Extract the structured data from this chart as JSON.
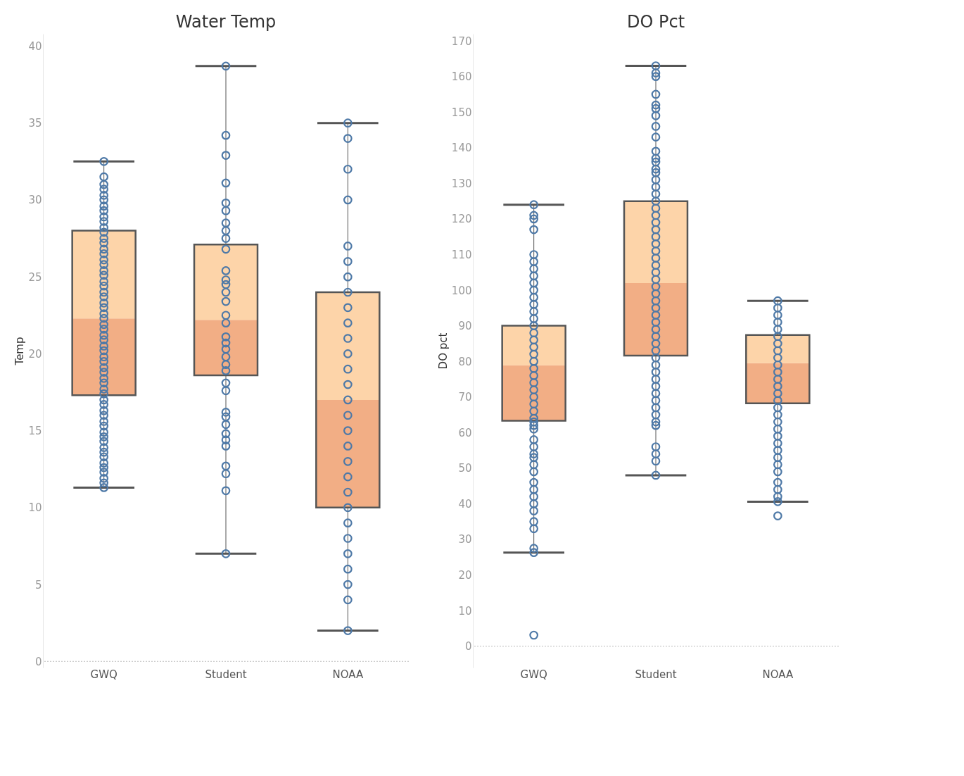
{
  "chart_data": [
    {
      "type": "box",
      "title": "Water Temp",
      "ylabel": "Temp",
      "categories": [
        "GWQ",
        "Student",
        "NOAA"
      ],
      "ylim": [
        -0.4,
        40.8
      ],
      "yticks": [
        0,
        5,
        10,
        15,
        20,
        25,
        30,
        35,
        40
      ],
      "grid": false,
      "ref_lines": [
        {
          "axis": "y",
          "value": 0,
          "color": "#bbbbbb",
          "line_style": "dotted"
        }
      ],
      "series": [
        {
          "type": "scatter",
          "color": "#4e79a7",
          "marker": "circle",
          "x": [
            "GWQ",
            "GWQ",
            "GWQ",
            "GWQ",
            "GWQ",
            "GWQ",
            "GWQ",
            "GWQ",
            "GWQ",
            "GWQ",
            "GWQ",
            "GWQ",
            "GWQ",
            "GWQ",
            "GWQ",
            "GWQ",
            "GWQ",
            "GWQ",
            "GWQ",
            "GWQ",
            "GWQ",
            "GWQ",
            "GWQ",
            "GWQ",
            "GWQ",
            "GWQ",
            "GWQ",
            "GWQ",
            "GWQ",
            "GWQ",
            "GWQ",
            "GWQ",
            "GWQ",
            "GWQ",
            "GWQ",
            "GWQ",
            "GWQ",
            "GWQ",
            "GWQ",
            "GWQ",
            "GWQ",
            "GWQ",
            "GWQ",
            "GWQ",
            "GWQ",
            "GWQ",
            "GWQ",
            "GWQ",
            "GWQ",
            "GWQ",
            "GWQ",
            "GWQ",
            "GWQ",
            "GWQ",
            "GWQ",
            "GWQ",
            "GWQ",
            "GWQ",
            "GWQ",
            "GWQ",
            "Student",
            "Student",
            "Student",
            "Student",
            "Student",
            "Student",
            "Student",
            "Student",
            "Student",
            "Student",
            "Student",
            "Student",
            "Student",
            "Student",
            "Student",
            "Student",
            "Student",
            "Student",
            "Student",
            "Student",
            "Student",
            "Student",
            "Student",
            "Student",
            "Student",
            "Student",
            "Student",
            "Student",
            "Student",
            "Student",
            "Student",
            "Student",
            "Student",
            "Student",
            "Student",
            "NOAA",
            "NOAA",
            "NOAA",
            "NOAA",
            "NOAA",
            "NOAA",
            "NOAA",
            "NOAA",
            "NOAA",
            "NOAA",
            "NOAA",
            "NOAA",
            "NOAA",
            "NOAA",
            "NOAA",
            "NOAA",
            "NOAA",
            "NOAA",
            "NOAA",
            "NOAA",
            "NOAA",
            "NOAA",
            "NOAA",
            "NOAA",
            "NOAA",
            "NOAA",
            "NOAA",
            "NOAA",
            "NOAA"
          ],
          "values": [
            11.3,
            11.6,
            11.9,
            12.3,
            12.6,
            12.9,
            13.3,
            13.6,
            13.9,
            14.3,
            14.6,
            14.9,
            15.3,
            15.6,
            16.0,
            16.3,
            16.7,
            17.0,
            17.4,
            17.7,
            18.1,
            18.4,
            18.8,
            19.1,
            19.5,
            19.8,
            20.2,
            20.5,
            20.9,
            21.2,
            21.6,
            21.9,
            22.3,
            22.6,
            23.0,
            23.3,
            23.7,
            24.0,
            24.4,
            24.7,
            25.1,
            25.4,
            25.8,
            26.1,
            26.5,
            26.8,
            27.2,
            27.5,
            27.9,
            28.2,
            28.6,
            28.9,
            29.3,
            29.6,
            30.0,
            30.3,
            30.7,
            31.0,
            31.5,
            32.5,
            38.7,
            34.2,
            32.9,
            31.1,
            29.8,
            29.3,
            28.5,
            28.0,
            27.5,
            26.8,
            25.4,
            24.8,
            24.5,
            24.0,
            23.4,
            22.5,
            22.0,
            21.1,
            20.7,
            20.3,
            19.8,
            19.3,
            18.9,
            18.1,
            17.6,
            16.2,
            15.9,
            15.4,
            14.8,
            14.4,
            14.0,
            12.7,
            12.2,
            11.1,
            7.0,
            35,
            34,
            32,
            30,
            27,
            26,
            25,
            24,
            23,
            22,
            21,
            20,
            19,
            18,
            17,
            16,
            15,
            14,
            13,
            12,
            11,
            10,
            9,
            8,
            7,
            6,
            5,
            4,
            2
          ]
        },
        {
          "type": "box",
          "colors": [
            [
              "#f0a070",
              "#fdcc9a"
            ],
            [
              "#f0a070",
              "#fdcc9a"
            ],
            [
              "#f0a070",
              "#fdcc9a"
            ]
          ],
          "boxes": [
            {
              "low": 11.3,
              "q1": 17.3,
              "median": 22.3,
              "q3": 28.0,
              "high": 32.5
            },
            {
              "low": 7.0,
              "q1": 18.6,
              "median": 22.2,
              "q3": 27.1,
              "high": 38.7
            },
            {
              "low": 2,
              "q1": 10,
              "median": 17,
              "q3": 24,
              "high": 35
            }
          ]
        }
      ]
    },
    {
      "type": "box",
      "title": "DO Pct",
      "ylabel": "DO pct",
      "categories": [
        "GWQ",
        "Student",
        "NOAA"
      ],
      "ylim": [
        -6,
        172
      ],
      "yticks": [
        0,
        10,
        20,
        30,
        40,
        50,
        60,
        70,
        80,
        90,
        100,
        110,
        120,
        130,
        140,
        150,
        160,
        170
      ],
      "grid": false,
      "ref_lines": [
        {
          "axis": "y",
          "value": 0,
          "color": "#bbbbbb",
          "line_style": "dotted"
        }
      ],
      "series": [
        {
          "type": "scatter",
          "color": "#4e79a7",
          "marker": "circle",
          "x": [
            "GWQ",
            "GWQ",
            "GWQ",
            "GWQ",
            "GWQ",
            "GWQ",
            "GWQ",
            "GWQ",
            "GWQ",
            "GWQ",
            "GWQ",
            "GWQ",
            "GWQ",
            "GWQ",
            "GWQ",
            "GWQ",
            "GWQ",
            "GWQ",
            "GWQ",
            "GWQ",
            "GWQ",
            "GWQ",
            "GWQ",
            "GWQ",
            "GWQ",
            "GWQ",
            "GWQ",
            "GWQ",
            "GWQ",
            "GWQ",
            "GWQ",
            "GWQ",
            "GWQ",
            "GWQ",
            "GWQ",
            "GWQ",
            "GWQ",
            "GWQ",
            "GWQ",
            "GWQ",
            "GWQ",
            "GWQ",
            "GWQ",
            "GWQ",
            "GWQ",
            "GWQ",
            "GWQ",
            "Student",
            "Student",
            "Student",
            "Student",
            "Student",
            "Student",
            "Student",
            "Student",
            "Student",
            "Student",
            "Student",
            "Student",
            "Student",
            "Student",
            "Student",
            "Student",
            "Student",
            "Student",
            "Student",
            "Student",
            "Student",
            "Student",
            "Student",
            "Student",
            "Student",
            "Student",
            "Student",
            "Student",
            "Student",
            "Student",
            "Student",
            "Student",
            "Student",
            "Student",
            "Student",
            "Student",
            "Student",
            "Student",
            "Student",
            "Student",
            "Student",
            "Student",
            "Student",
            "Student",
            "Student",
            "Student",
            "Student",
            "Student",
            "Student",
            "Student",
            "Student",
            "Student",
            "Student",
            "Student",
            "NOAA",
            "NOAA",
            "NOAA",
            "NOAA",
            "NOAA",
            "NOAA",
            "NOAA",
            "NOAA",
            "NOAA",
            "NOAA",
            "NOAA",
            "NOAA",
            "NOAA",
            "NOAA",
            "NOAA",
            "NOAA",
            "NOAA",
            "NOAA",
            "NOAA",
            "NOAA",
            "NOAA",
            "NOAA",
            "NOAA",
            "NOAA",
            "NOAA",
            "NOAA",
            "NOAA",
            "NOAA",
            "NOAA",
            "NOAA"
          ],
          "values": [
            3.1,
            26.3,
            27.5,
            33,
            35,
            38,
            40,
            42,
            44,
            46,
            49,
            51,
            53,
            54,
            56,
            58,
            61,
            62,
            63,
            64,
            66,
            68,
            70,
            72,
            74,
            76,
            78,
            80,
            82,
            84,
            86,
            88,
            90,
            92,
            94,
            96,
            98,
            100,
            102,
            104,
            106,
            108,
            110,
            117,
            120,
            121,
            124,
            48,
            52,
            54,
            56,
            62,
            63,
            65,
            67,
            69,
            71,
            73,
            75,
            77,
            79,
            81,
            83,
            85,
            87,
            89,
            91,
            93,
            95,
            97,
            99,
            101,
            103,
            105,
            107,
            109,
            111,
            113,
            115,
            117,
            119,
            121,
            123,
            125,
            127,
            129,
            131,
            133,
            134,
            136,
            137,
            139,
            143,
            146,
            149,
            151,
            152,
            155,
            160,
            161,
            163,
            36.6,
            40.6,
            42,
            44,
            46,
            49,
            51,
            53,
            55,
            57,
            59,
            61,
            63,
            65,
            67,
            69,
            71,
            73,
            75,
            77,
            79,
            81,
            83,
            85,
            87,
            89,
            91,
            93,
            95,
            97
          ]
        },
        {
          "type": "box",
          "colors": [
            [
              "#f0a070",
              "#fdcc9a"
            ],
            [
              "#f0a070",
              "#fdcc9a"
            ],
            [
              "#f0a070",
              "#fdcc9a"
            ]
          ],
          "boxes": [
            {
              "low": 26.3,
              "q1": 63.3,
              "median": 78.9,
              "q3": 90.0,
              "high": 124
            },
            {
              "low": 48,
              "q1": 81.6,
              "median": 102,
              "q3": 125,
              "high": 163
            },
            {
              "low": 40.6,
              "q1": 68.2,
              "median": 79.5,
              "q3": 87.4,
              "high": 97
            }
          ]
        }
      ]
    }
  ]
}
